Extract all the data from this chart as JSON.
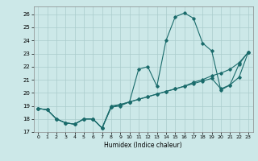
{
  "xlabel": "Humidex (Indice chaleur)",
  "background_color": "#cce8e8",
  "grid_color": "#aacccc",
  "line_color": "#1a6b6b",
  "xlim": [
    -0.5,
    23.5
  ],
  "ylim": [
    17.0,
    26.6
  ],
  "xticks": [
    0,
    1,
    2,
    3,
    4,
    5,
    6,
    7,
    8,
    9,
    10,
    11,
    12,
    13,
    14,
    15,
    16,
    17,
    18,
    19,
    20,
    21,
    22,
    23
  ],
  "yticks": [
    17,
    18,
    19,
    20,
    21,
    22,
    23,
    24,
    25,
    26
  ],
  "line1_x": [
    0,
    1,
    2,
    3,
    4,
    5,
    6,
    7,
    8,
    9,
    10,
    11,
    12,
    13,
    14,
    15,
    16,
    17,
    18,
    19,
    20,
    21,
    22,
    23
  ],
  "line1_y": [
    18.8,
    18.7,
    18.0,
    17.7,
    17.6,
    18.0,
    18.0,
    17.3,
    18.9,
    19.0,
    19.3,
    21.8,
    22.0,
    20.5,
    24.0,
    25.8,
    26.1,
    25.7,
    23.8,
    23.2,
    20.2,
    20.6,
    22.2,
    23.1
  ],
  "line2_x": [
    0,
    1,
    2,
    3,
    4,
    5,
    6,
    7,
    8,
    9,
    10,
    11,
    12,
    13,
    14,
    15,
    16,
    17,
    18,
    19,
    20,
    21,
    22,
    23
  ],
  "line2_y": [
    18.8,
    18.7,
    18.0,
    17.7,
    17.6,
    18.0,
    18.0,
    17.3,
    18.9,
    19.1,
    19.3,
    19.5,
    19.7,
    19.9,
    20.1,
    20.3,
    20.5,
    20.8,
    21.0,
    21.3,
    21.5,
    21.8,
    22.3,
    23.1
  ],
  "line3_x": [
    0,
    1,
    2,
    3,
    4,
    5,
    6,
    7,
    8,
    9,
    10,
    11,
    12,
    13,
    14,
    15,
    16,
    17,
    18,
    19,
    20,
    21,
    22,
    23
  ],
  "line3_y": [
    18.8,
    18.7,
    18.0,
    17.7,
    17.6,
    18.0,
    18.0,
    17.3,
    19.0,
    19.1,
    19.3,
    19.5,
    19.7,
    19.9,
    20.1,
    20.3,
    20.5,
    20.7,
    20.9,
    21.1,
    20.3,
    20.6,
    21.2,
    23.1
  ]
}
